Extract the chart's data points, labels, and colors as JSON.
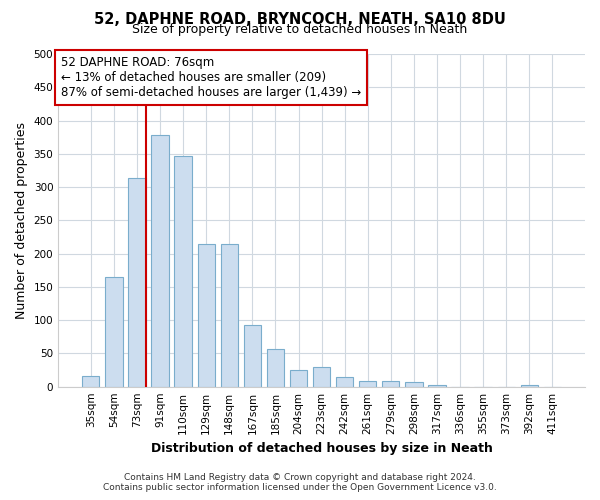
{
  "title": "52, DAPHNE ROAD, BRYNCOCH, NEATH, SA10 8DU",
  "subtitle": "Size of property relative to detached houses in Neath",
  "xlabel": "Distribution of detached houses by size in Neath",
  "ylabel": "Number of detached properties",
  "bin_labels": [
    "35sqm",
    "54sqm",
    "73sqm",
    "91sqm",
    "110sqm",
    "129sqm",
    "148sqm",
    "167sqm",
    "185sqm",
    "204sqm",
    "223sqm",
    "242sqm",
    "261sqm",
    "279sqm",
    "298sqm",
    "317sqm",
    "336sqm",
    "355sqm",
    "373sqm",
    "392sqm",
    "411sqm"
  ],
  "bar_heights": [
    16,
    165,
    313,
    378,
    346,
    215,
    215,
    93,
    56,
    25,
    29,
    15,
    9,
    9,
    7,
    3,
    0,
    0,
    0,
    3,
    0
  ],
  "bar_color": "#ccddef",
  "bar_edge_color": "#7aadcc",
  "vline_color": "#cc0000",
  "annotation_title": "52 DAPHNE ROAD: 76sqm",
  "annotation_line1": "← 13% of detached houses are smaller (209)",
  "annotation_line2": "87% of semi-detached houses are larger (1,439) →",
  "annotation_box_color": "#ffffff",
  "annotation_box_edge_color": "#cc0000",
  "ylim": [
    0,
    500
  ],
  "yticks": [
    0,
    50,
    100,
    150,
    200,
    250,
    300,
    350,
    400,
    450,
    500
  ],
  "footer1": "Contains HM Land Registry data © Crown copyright and database right 2024.",
  "footer2": "Contains public sector information licensed under the Open Government Licence v3.0.",
  "bg_color": "#ffffff",
  "plot_bg_color": "#ffffff",
  "grid_color": "#d0d8e0"
}
